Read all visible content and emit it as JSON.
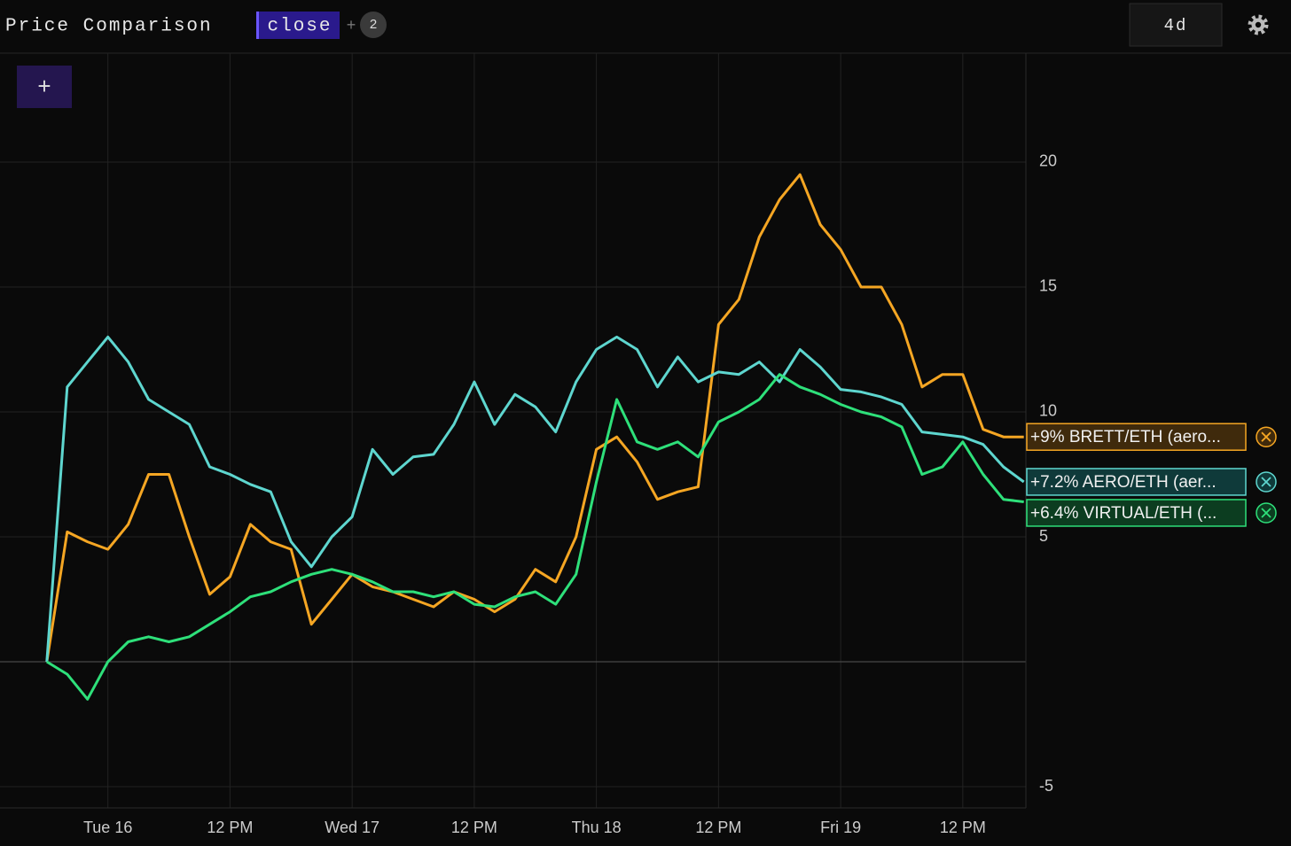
{
  "toolbar": {
    "title": "Price Comparison",
    "field": "close",
    "plus": "+",
    "badge": "2",
    "range": "4d",
    "add": "+"
  },
  "chart_data": {
    "type": "line",
    "x": [
      -6,
      -4,
      -2,
      0,
      2,
      4,
      6,
      8,
      10,
      12,
      14,
      16,
      18,
      20,
      22,
      24,
      26,
      28,
      30,
      32,
      34,
      36,
      38,
      40,
      42,
      44,
      46,
      48,
      50,
      52,
      54,
      56,
      58,
      60,
      62,
      64,
      66,
      68,
      70,
      72,
      74,
      76,
      78,
      80,
      82,
      84,
      86,
      88,
      90
    ],
    "series": [
      {
        "name": "+9% BRETT/ETH (aero...",
        "color": "#f5a623",
        "fill": "#3f2a0c",
        "values": [
          0,
          5.2,
          4.8,
          4.5,
          5.5,
          7.5,
          7.5,
          5,
          2.7,
          3.4,
          5.5,
          4.8,
          4.5,
          1.5,
          2.5,
          3.5,
          3,
          2.8,
          2.5,
          2.2,
          2.8,
          2.5,
          2,
          2.5,
          3.7,
          3.2,
          5,
          8.5,
          9,
          8,
          6.5,
          6.8,
          7,
          13.5,
          14.5,
          17,
          18.5,
          19.5,
          17.5,
          16.5,
          15,
          15,
          13.5,
          11,
          11.5,
          11.5,
          9.3,
          9,
          9
        ]
      },
      {
        "name": "+7.2% AERO/ETH (aer...",
        "color": "#5ed6cf",
        "fill": "#0f3a3a",
        "values": [
          0,
          11,
          12,
          13,
          12,
          10.5,
          10,
          9.5,
          7.8,
          7.5,
          7.1,
          6.8,
          4.8,
          3.8,
          5,
          5.8,
          8.5,
          7.5,
          8.2,
          8.3,
          9.5,
          11.2,
          9.5,
          10.7,
          10.2,
          9.2,
          11.2,
          12.5,
          13,
          12.5,
          11,
          12.2,
          11.2,
          11.6,
          11.5,
          12,
          11.2,
          12.5,
          11.8,
          10.9,
          10.8,
          10.6,
          10.3,
          9.2,
          9.1,
          9,
          8.7,
          7.8,
          7.2
        ]
      },
      {
        "name": "+6.4% VIRTUAL/ETH (...",
        "color": "#2ee07a",
        "fill": "#0c3d20",
        "values": [
          0,
          -0.5,
          -1.5,
          0,
          0.8,
          1,
          0.8,
          1,
          1.5,
          2,
          2.6,
          2.8,
          3.2,
          3.5,
          3.7,
          3.5,
          3.2,
          2.8,
          2.8,
          2.6,
          2.8,
          2.3,
          2.2,
          2.6,
          2.8,
          2.3,
          3.5,
          7.2,
          10.5,
          8.8,
          8.5,
          8.8,
          8.2,
          9.6,
          10,
          10.5,
          11.5,
          11,
          10.7,
          10.3,
          10,
          9.8,
          9.4,
          7.5,
          7.8,
          8.8,
          7.5,
          6.5,
          6.4
        ]
      }
    ],
    "xlim": [
      -10.6,
      90.2
    ],
    "xticks": [
      {
        "value": 0,
        "label": "Tue 16"
      },
      {
        "value": 12,
        "label": "12 PM"
      },
      {
        "value": 24,
        "label": "Wed 17"
      },
      {
        "value": 36,
        "label": "12 PM"
      },
      {
        "value": 48,
        "label": "Thu 18"
      },
      {
        "value": 60,
        "label": "12 PM"
      },
      {
        "value": 72,
        "label": "Fri 19"
      },
      {
        "value": 84,
        "label": "12 PM"
      }
    ],
    "ylim": [
      -5.85,
      24.36
    ],
    "yticks": [
      -5,
      5,
      10,
      15,
      20
    ],
    "grid": true
  }
}
